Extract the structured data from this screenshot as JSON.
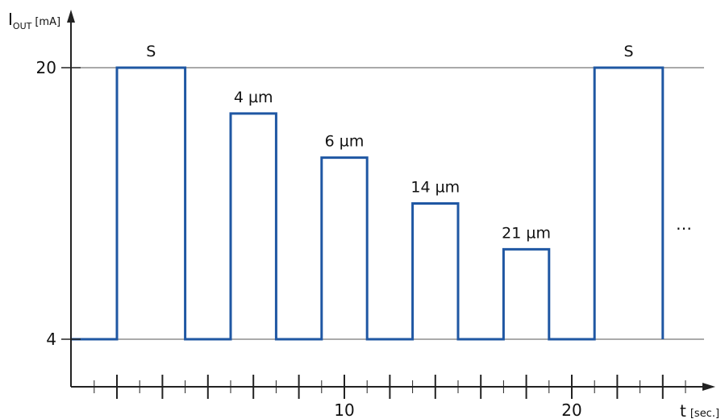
{
  "chart_data": {
    "type": "line",
    "y_axis": {
      "label_main": "I",
      "label_sub": "OUT",
      "label_unit": "[mA]",
      "ticks": [
        4,
        20
      ]
    },
    "x_axis": {
      "label_main": "t",
      "label_unit": "[sec.]",
      "tick_labels": [
        10,
        20
      ],
      "range": [
        -2,
        27
      ]
    },
    "series": [
      {
        "points": [
          [
            -2,
            4
          ],
          [
            0,
            4
          ],
          [
            0,
            20
          ],
          [
            3,
            20
          ],
          [
            3,
            4
          ],
          [
            5,
            4
          ],
          [
            5,
            17.3
          ],
          [
            7,
            17.3
          ],
          [
            7,
            4
          ],
          [
            9,
            4
          ],
          [
            9,
            14.7
          ],
          [
            11,
            14.7
          ],
          [
            11,
            4
          ],
          [
            13,
            4
          ],
          [
            13,
            12
          ],
          [
            15,
            12
          ],
          [
            15,
            4
          ],
          [
            17,
            4
          ],
          [
            17,
            9.3
          ],
          [
            19,
            9.3
          ],
          [
            19,
            4
          ],
          [
            21,
            4
          ],
          [
            21,
            20
          ],
          [
            24,
            20
          ],
          [
            24,
            4
          ]
        ]
      }
    ],
    "annotations": [
      {
        "text": "S",
        "x": 1.5,
        "y": 20
      },
      {
        "text": "4 µm",
        "x": 6,
        "y": 17.3
      },
      {
        "text": "6 µm",
        "x": 10,
        "y": 14.7
      },
      {
        "text": "14 µm",
        "x": 14,
        "y": 12
      },
      {
        "text": "21 µm",
        "x": 18,
        "y": 9.3
      },
      {
        "text": "S",
        "x": 22.5,
        "y": 20
      }
    ],
    "continuation": "…"
  }
}
